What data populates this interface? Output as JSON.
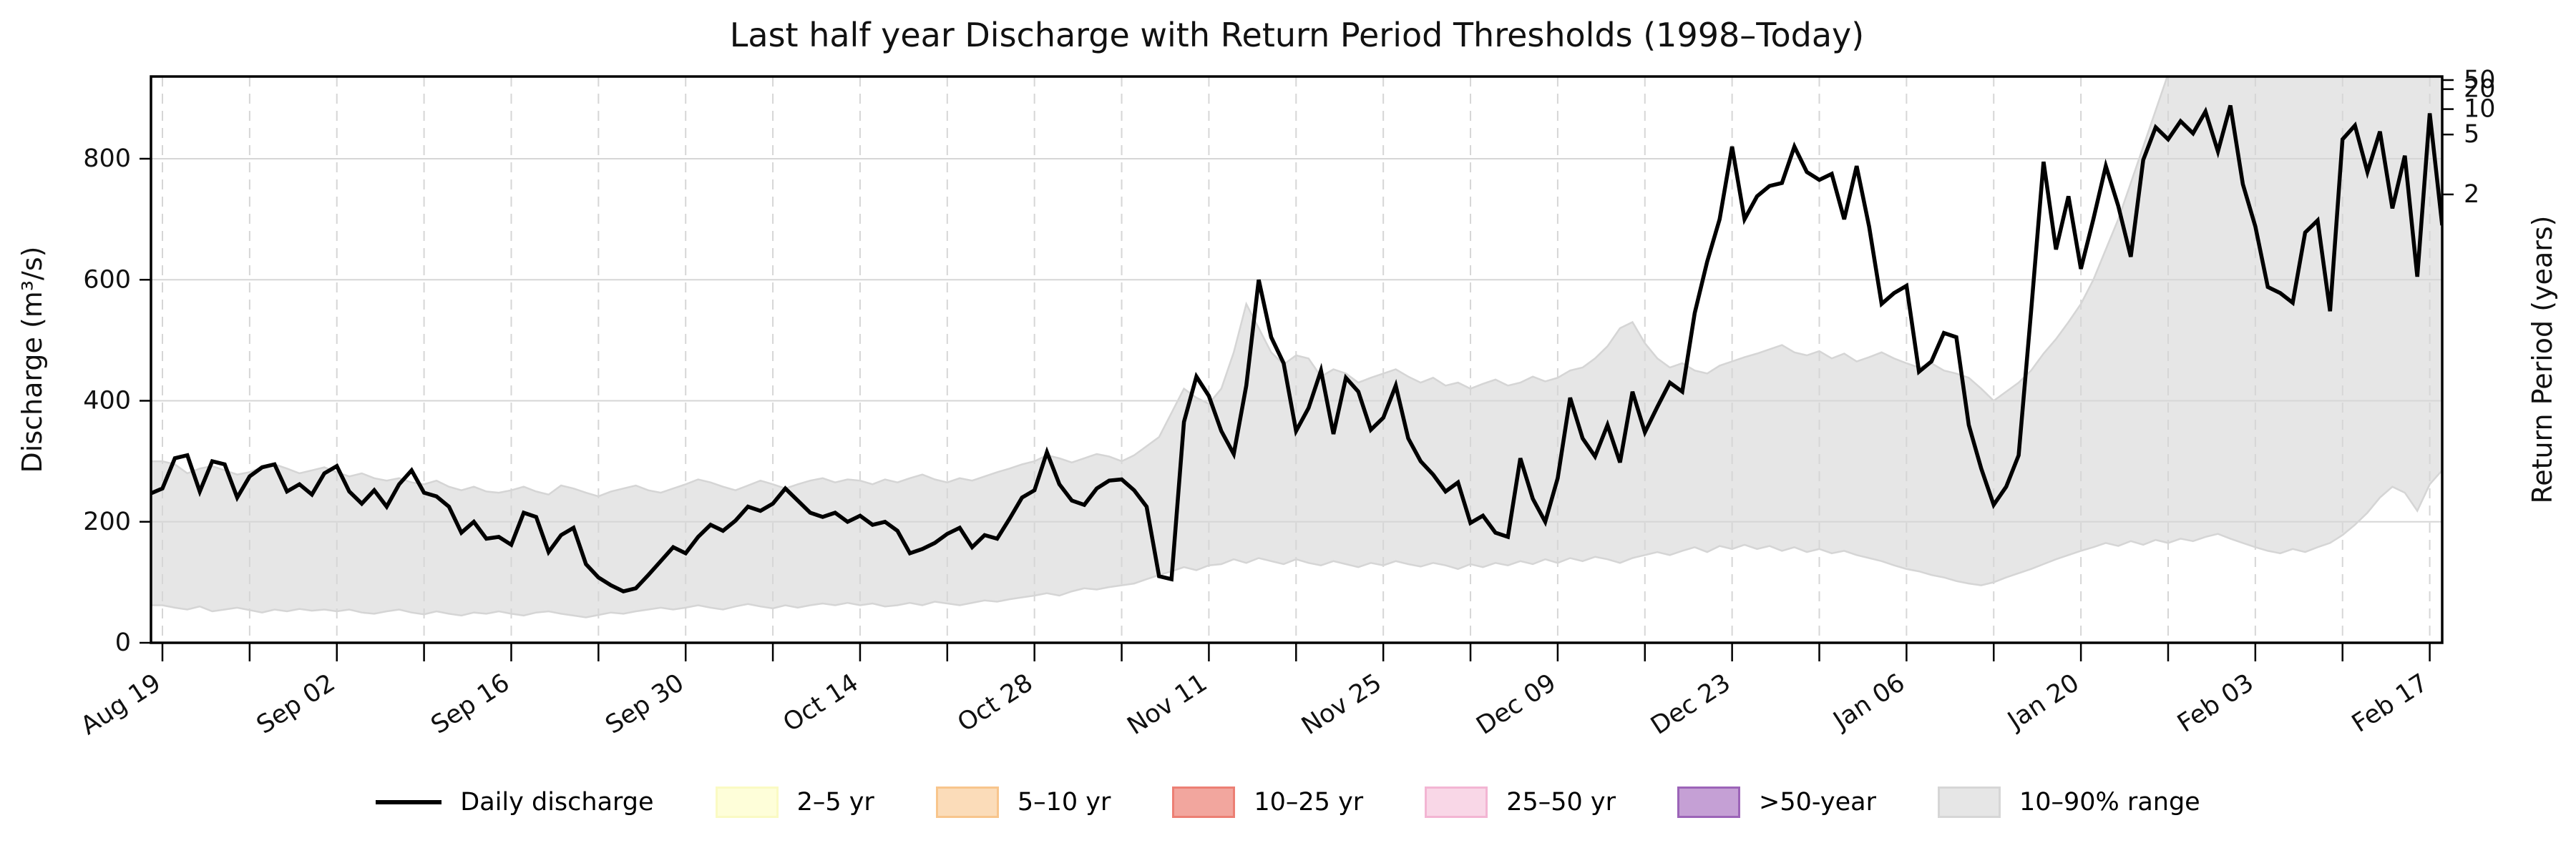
{
  "title": "Last half year Discharge with Return Period Thresholds (1998–Today)",
  "axes": {
    "y_left": {
      "label": "Discharge (m³/s)",
      "ticks": [
        0,
        200,
        400,
        600,
        800
      ],
      "ylim": [
        0,
        936
      ]
    },
    "y_right": {
      "label": "Return Period (years)",
      "ticks": [
        {
          "label": "50",
          "discharge": 930
        },
        {
          "label": "20",
          "discharge": 915
        },
        {
          "label": "10",
          "discharge": 882
        },
        {
          "label": "5",
          "discharge": 840
        },
        {
          "label": "2",
          "discharge": 741
        }
      ]
    },
    "x": {
      "tick_labels": [
        "Aug 19",
        "Sep 02",
        "Sep 16",
        "Sep 30",
        "Oct 14",
        "Oct 28",
        "Nov 11",
        "Nov 25",
        "Dec 09",
        "Dec 23",
        "Jan 06",
        "Jan 20",
        "Feb 03",
        "Feb 17"
      ],
      "tick_day_offsets": [
        0,
        14,
        28,
        42,
        56,
        70,
        84,
        98,
        112,
        126,
        140,
        154,
        168,
        182
      ],
      "minor_day_step": 7,
      "total_days": 183
    }
  },
  "colors": {
    "line": "#000000",
    "band_fill": "#e6e6e6",
    "band_edge": "#d5d5d5",
    "grid": "#d6d6d6",
    "frame": "#000000"
  },
  "legend": [
    {
      "label": "Daily discharge",
      "type": "line",
      "fill": "#000000",
      "border": "#000000"
    },
    {
      "label": "2–5 yr",
      "type": "patch",
      "fill": "#fefed9",
      "border": "#fafac3"
    },
    {
      "label": "5–10 yr",
      "type": "patch",
      "fill": "#fbdcb9",
      "border": "#f8c58c"
    },
    {
      "label": "10–25 yr",
      "type": "patch",
      "fill": "#f2a69e",
      "border": "#ec7f74"
    },
    {
      "label": "25–50 yr",
      "type": "patch",
      "fill": "#f9d7e7",
      "border": "#f3b5d3"
    },
    {
      "label": ">50-year",
      "type": "patch",
      "fill": "#c5a0d5",
      "border": "#9c64b8"
    },
    {
      "label": "10–90% range",
      "type": "patch",
      "fill": "#e6e6e6",
      "border": "#d6d6d6"
    }
  ],
  "chart_data": {
    "type": "line",
    "title": "Last half year Discharge with Return Period Thresholds (1998–Today)",
    "xlabel": "",
    "ylabel": "Discharge (m³/s)",
    "ylabel_right": "Return Period (years)",
    "x_unit": "days since Aug 19",
    "x_range_days": [
      0,
      183
    ],
    "grid": true,
    "legend_position": "bottom center",
    "return_period_thresholds_m3s": {
      "2": 741,
      "5": 840,
      "10": 882,
      "20": 915,
      "50": 930
    },
    "series": [
      {
        "name": "Daily discharge",
        "values": [
          255,
          305,
          310,
          250,
          300,
          295,
          240,
          275,
          290,
          295,
          250,
          262,
          245,
          280,
          292,
          250,
          230,
          252,
          225,
          262,
          285,
          248,
          242,
          225,
          182,
          200,
          172,
          175,
          162,
          215,
          208,
          150,
          178,
          190,
          130,
          108,
          95,
          85,
          90,
          112,
          135,
          158,
          148,
          175,
          195,
          185,
          202,
          225,
          218,
          230,
          255,
          235,
          215,
          208,
          215,
          200,
          210,
          195,
          200,
          185,
          148,
          155,
          165,
          180,
          190,
          158,
          178,
          172,
          205,
          240,
          252,
          315,
          262,
          235,
          228,
          255,
          268,
          270,
          252,
          225,
          110,
          105,
          365,
          440,
          408,
          350,
          312,
          425,
          600,
          505,
          462,
          350,
          388,
          450,
          345,
          438,
          415,
          352,
          372,
          425,
          338,
          300,
          278,
          250,
          265,
          198,
          210,
          182,
          175,
          305,
          238,
          200,
          272,
          405,
          338,
          308,
          360,
          298,
          415,
          348,
          390,
          430,
          415,
          545,
          630,
          700,
          820,
          700,
          738,
          755,
          760,
          820,
          778,
          765,
          775,
          700,
          788,
          688,
          560,
          578,
          590,
          448,
          465,
          512,
          505,
          360,
          288,
          228,
          258,
          310,
          548,
          795,
          650,
          738,
          618,
          700,
          788,
          722,
          638,
          798,
          852,
          832,
          862,
          842,
          878,
          812,
          888,
          758,
          688,
          588,
          578,
          562,
          678,
          698,
          548,
          832,
          855,
          778,
          845,
          718,
          805,
          605,
          875,
          690
        ]
      },
      {
        "name": "90th percentile",
        "values": [
          300,
          295,
          280,
          288,
          292,
          285,
          278,
          282,
          290,
          295,
          288,
          280,
          285,
          290,
          282,
          275,
          280,
          272,
          268,
          272,
          265,
          262,
          268,
          258,
          252,
          258,
          250,
          248,
          252,
          258,
          250,
          245,
          260,
          255,
          248,
          242,
          250,
          255,
          260,
          252,
          248,
          255,
          262,
          270,
          265,
          258,
          252,
          260,
          268,
          262,
          255,
          262,
          268,
          272,
          265,
          270,
          268,
          262,
          270,
          265,
          272,
          278,
          270,
          265,
          272,
          268,
          275,
          282,
          288,
          295,
          300,
          310,
          305,
          298,
          305,
          312,
          308,
          300,
          310,
          325,
          340,
          380,
          420,
          405,
          395,
          420,
          480,
          560,
          520,
          480,
          460,
          475,
          470,
          440,
          452,
          445,
          430,
          438,
          445,
          452,
          440,
          430,
          438,
          425,
          430,
          420,
          428,
          435,
          425,
          430,
          440,
          432,
          438,
          450,
          455,
          470,
          490,
          520,
          530,
          495,
          470,
          455,
          462,
          450,
          445,
          458,
          465,
          472,
          478,
          485,
          492,
          480,
          475,
          482,
          470,
          478,
          465,
          472,
          480,
          470,
          462,
          455,
          462,
          450,
          445,
          438,
          420,
          400,
          415,
          430,
          450,
          478,
          502,
          530,
          560,
          600,
          650,
          700,
          760,
          820,
          880,
          940,
          955,
          955,
          955,
          955,
          955,
          955,
          955,
          955,
          955,
          955,
          955,
          955,
          955,
          955,
          955,
          955,
          955,
          955,
          955,
          955,
          955,
          955
        ]
      },
      {
        "name": "10th percentile",
        "values": [
          62,
          58,
          55,
          60,
          52,
          55,
          58,
          54,
          50,
          55,
          52,
          56,
          53,
          55,
          52,
          55,
          50,
          48,
          52,
          55,
          50,
          47,
          52,
          48,
          45,
          50,
          48,
          52,
          48,
          45,
          50,
          52,
          48,
          45,
          42,
          46,
          50,
          48,
          52,
          55,
          58,
          55,
          58,
          62,
          58,
          55,
          60,
          64,
          60,
          57,
          62,
          58,
          62,
          65,
          62,
          66,
          62,
          65,
          60,
          62,
          66,
          62,
          68,
          65,
          62,
          66,
          70,
          68,
          72,
          75,
          78,
          82,
          78,
          85,
          90,
          88,
          92,
          95,
          98,
          105,
          112,
          118,
          125,
          120,
          128,
          130,
          138,
          132,
          140,
          135,
          130,
          138,
          132,
          128,
          135,
          130,
          125,
          132,
          128,
          135,
          130,
          126,
          132,
          128,
          122,
          130,
          125,
          132,
          128,
          135,
          130,
          138,
          132,
          140,
          135,
          142,
          138,
          132,
          140,
          145,
          150,
          145,
          152,
          158,
          150,
          160,
          155,
          162,
          155,
          160,
          152,
          158,
          150,
          155,
          148,
          152,
          145,
          140,
          135,
          128,
          122,
          118,
          112,
          108,
          102,
          98,
          95,
          100,
          108,
          115,
          122,
          130,
          138,
          145,
          152,
          158,
          165,
          160,
          168,
          162,
          170,
          165,
          172,
          168,
          175,
          180,
          172,
          165,
          158,
          152,
          148,
          155,
          150,
          158,
          165,
          178,
          195,
          215,
          240,
          258,
          248,
          218,
          262,
          285
        ]
      }
    ]
  }
}
